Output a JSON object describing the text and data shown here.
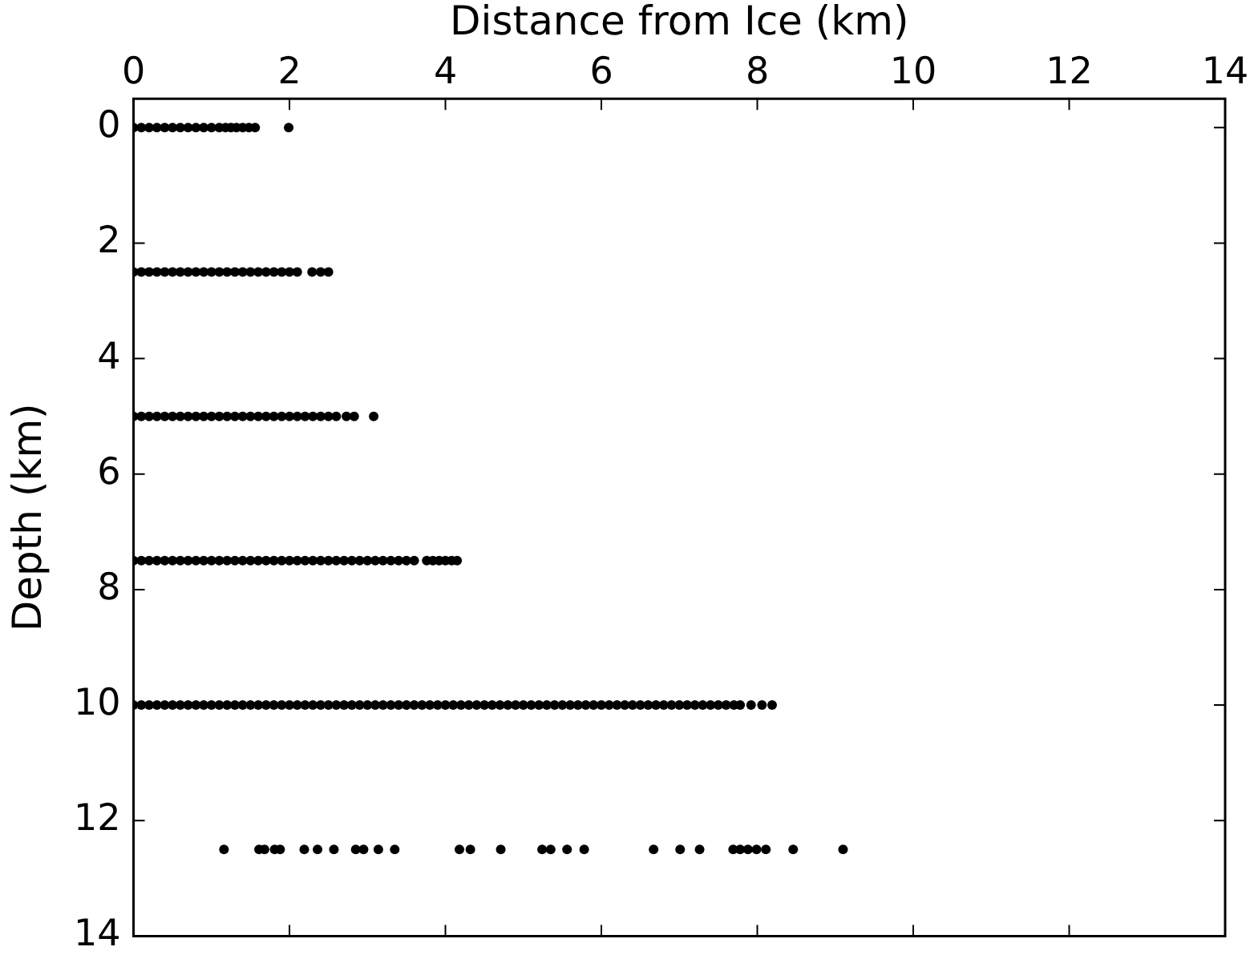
{
  "chart_data": {
    "type": "scatter",
    "xlabel": "Distance from Ice (km)",
    "ylabel": "Depth (km)",
    "xlim": [
      0,
      14
    ],
    "xticks": [
      0,
      2,
      4,
      6,
      8,
      10,
      12,
      14
    ],
    "ylim": [
      14,
      -0.5
    ],
    "yticks": [
      0,
      2,
      4,
      6,
      8,
      10,
      12,
      14
    ],
    "grid": false,
    "legend": false,
    "marker": "circle",
    "series": [
      {
        "color": "#000000",
        "x": [
          0,
          0.1,
          0.2,
          0.3,
          0.4,
          0.5,
          0.6,
          0.7,
          0.8,
          0.9,
          1.0,
          1.1,
          1.18,
          1.25,
          1.32,
          1.4,
          1.48,
          1.56,
          1.99
        ],
        "values": [
          0,
          0,
          0,
          0,
          0,
          0,
          0,
          0,
          0,
          0,
          0,
          0,
          0,
          0,
          0,
          0,
          0,
          0,
          0
        ]
      },
      {
        "color": "#000000",
        "x": [
          0,
          0.1,
          0.2,
          0.3,
          0.4,
          0.5,
          0.6,
          0.7,
          0.8,
          0.9,
          1.0,
          1.1,
          1.2,
          1.3,
          1.4,
          1.5,
          1.6,
          1.7,
          1.8,
          1.9,
          2.0,
          2.1,
          2.29,
          2.4,
          2.5
        ],
        "values": [
          2.5,
          2.5,
          2.5,
          2.5,
          2.5,
          2.5,
          2.5,
          2.5,
          2.5,
          2.5,
          2.5,
          2.5,
          2.5,
          2.5,
          2.5,
          2.5,
          2.5,
          2.5,
          2.5,
          2.5,
          2.5,
          2.5,
          2.5,
          2.5,
          2.5
        ]
      },
      {
        "color": "#000000",
        "x": [
          0,
          0.1,
          0.2,
          0.3,
          0.4,
          0.5,
          0.6,
          0.7,
          0.8,
          0.9,
          1.0,
          1.1,
          1.2,
          1.3,
          1.4,
          1.5,
          1.6,
          1.7,
          1.8,
          1.9,
          2.0,
          2.1,
          2.2,
          2.3,
          2.4,
          2.5,
          2.6,
          2.73,
          2.83,
          3.08
        ],
        "values": [
          5,
          5,
          5,
          5,
          5,
          5,
          5,
          5,
          5,
          5,
          5,
          5,
          5,
          5,
          5,
          5,
          5,
          5,
          5,
          5,
          5,
          5,
          5,
          5,
          5,
          5,
          5,
          5,
          5,
          5
        ]
      },
      {
        "color": "#000000",
        "x": [
          0,
          0.1,
          0.2,
          0.3,
          0.4,
          0.5,
          0.6,
          0.7,
          0.8,
          0.9,
          1.0,
          1.1,
          1.2,
          1.3,
          1.4,
          1.5,
          1.6,
          1.7,
          1.8,
          1.9,
          2.0,
          2.1,
          2.2,
          2.3,
          2.4,
          2.5,
          2.6,
          2.7,
          2.8,
          2.9,
          3.0,
          3.1,
          3.2,
          3.3,
          3.4,
          3.5,
          3.6,
          3.76,
          3.84,
          3.92,
          4.0,
          4.08,
          4.15
        ],
        "values": [
          7.5,
          7.5,
          7.5,
          7.5,
          7.5,
          7.5,
          7.5,
          7.5,
          7.5,
          7.5,
          7.5,
          7.5,
          7.5,
          7.5,
          7.5,
          7.5,
          7.5,
          7.5,
          7.5,
          7.5,
          7.5,
          7.5,
          7.5,
          7.5,
          7.5,
          7.5,
          7.5,
          7.5,
          7.5,
          7.5,
          7.5,
          7.5,
          7.5,
          7.5,
          7.5,
          7.5,
          7.5,
          7.5,
          7.5,
          7.5,
          7.5,
          7.5,
          7.5
        ]
      },
      {
        "color": "#000000",
        "x": [
          0,
          0.1,
          0.2,
          0.3,
          0.4,
          0.5,
          0.6,
          0.7,
          0.8,
          0.9,
          1.0,
          1.1,
          1.2,
          1.3,
          1.4,
          1.5,
          1.6,
          1.7,
          1.8,
          1.9,
          2.0,
          2.1,
          2.2,
          2.3,
          2.4,
          2.5,
          2.6,
          2.7,
          2.8,
          2.9,
          3.0,
          3.1,
          3.2,
          3.3,
          3.4,
          3.5,
          3.6,
          3.7,
          3.8,
          3.9,
          4.0,
          4.1,
          4.2,
          4.3,
          4.4,
          4.5,
          4.6,
          4.7,
          4.8,
          4.9,
          5.0,
          5.1,
          5.2,
          5.3,
          5.4,
          5.5,
          5.6,
          5.7,
          5.8,
          5.9,
          6.0,
          6.1,
          6.2,
          6.3,
          6.4,
          6.5,
          6.6,
          6.7,
          6.8,
          6.9,
          7.0,
          7.1,
          7.2,
          7.3,
          7.4,
          7.5,
          7.6,
          7.7,
          7.78,
          7.92,
          8.06,
          8.19
        ],
        "values": [
          10,
          10,
          10,
          10,
          10,
          10,
          10,
          10,
          10,
          10,
          10,
          10,
          10,
          10,
          10,
          10,
          10,
          10,
          10,
          10,
          10,
          10,
          10,
          10,
          10,
          10,
          10,
          10,
          10,
          10,
          10,
          10,
          10,
          10,
          10,
          10,
          10,
          10,
          10,
          10,
          10,
          10,
          10,
          10,
          10,
          10,
          10,
          10,
          10,
          10,
          10,
          10,
          10,
          10,
          10,
          10,
          10,
          10,
          10,
          10,
          10,
          10,
          10,
          10,
          10,
          10,
          10,
          10,
          10,
          10,
          10,
          10,
          10,
          10,
          10,
          10,
          10,
          10,
          10,
          10,
          10,
          10
        ]
      },
      {
        "color": "#000000",
        "x": [
          1.16,
          1.61,
          1.68,
          1.81,
          1.88,
          2.19,
          2.36,
          2.57,
          2.85,
          2.95,
          3.14,
          3.35,
          4.18,
          4.32,
          4.71,
          5.24,
          5.35,
          5.56,
          5.78,
          6.67,
          7.01,
          7.26,
          7.69,
          7.78,
          7.88,
          7.99,
          8.11,
          8.46,
          9.1
        ],
        "values": [
          12.5,
          12.5,
          12.5,
          12.5,
          12.5,
          12.5,
          12.5,
          12.5,
          12.5,
          12.5,
          12.5,
          12.5,
          12.5,
          12.5,
          12.5,
          12.5,
          12.5,
          12.5,
          12.5,
          12.5,
          12.5,
          12.5,
          12.5,
          12.5,
          12.5,
          12.5,
          12.5,
          12.5,
          12.5
        ]
      }
    ]
  }
}
